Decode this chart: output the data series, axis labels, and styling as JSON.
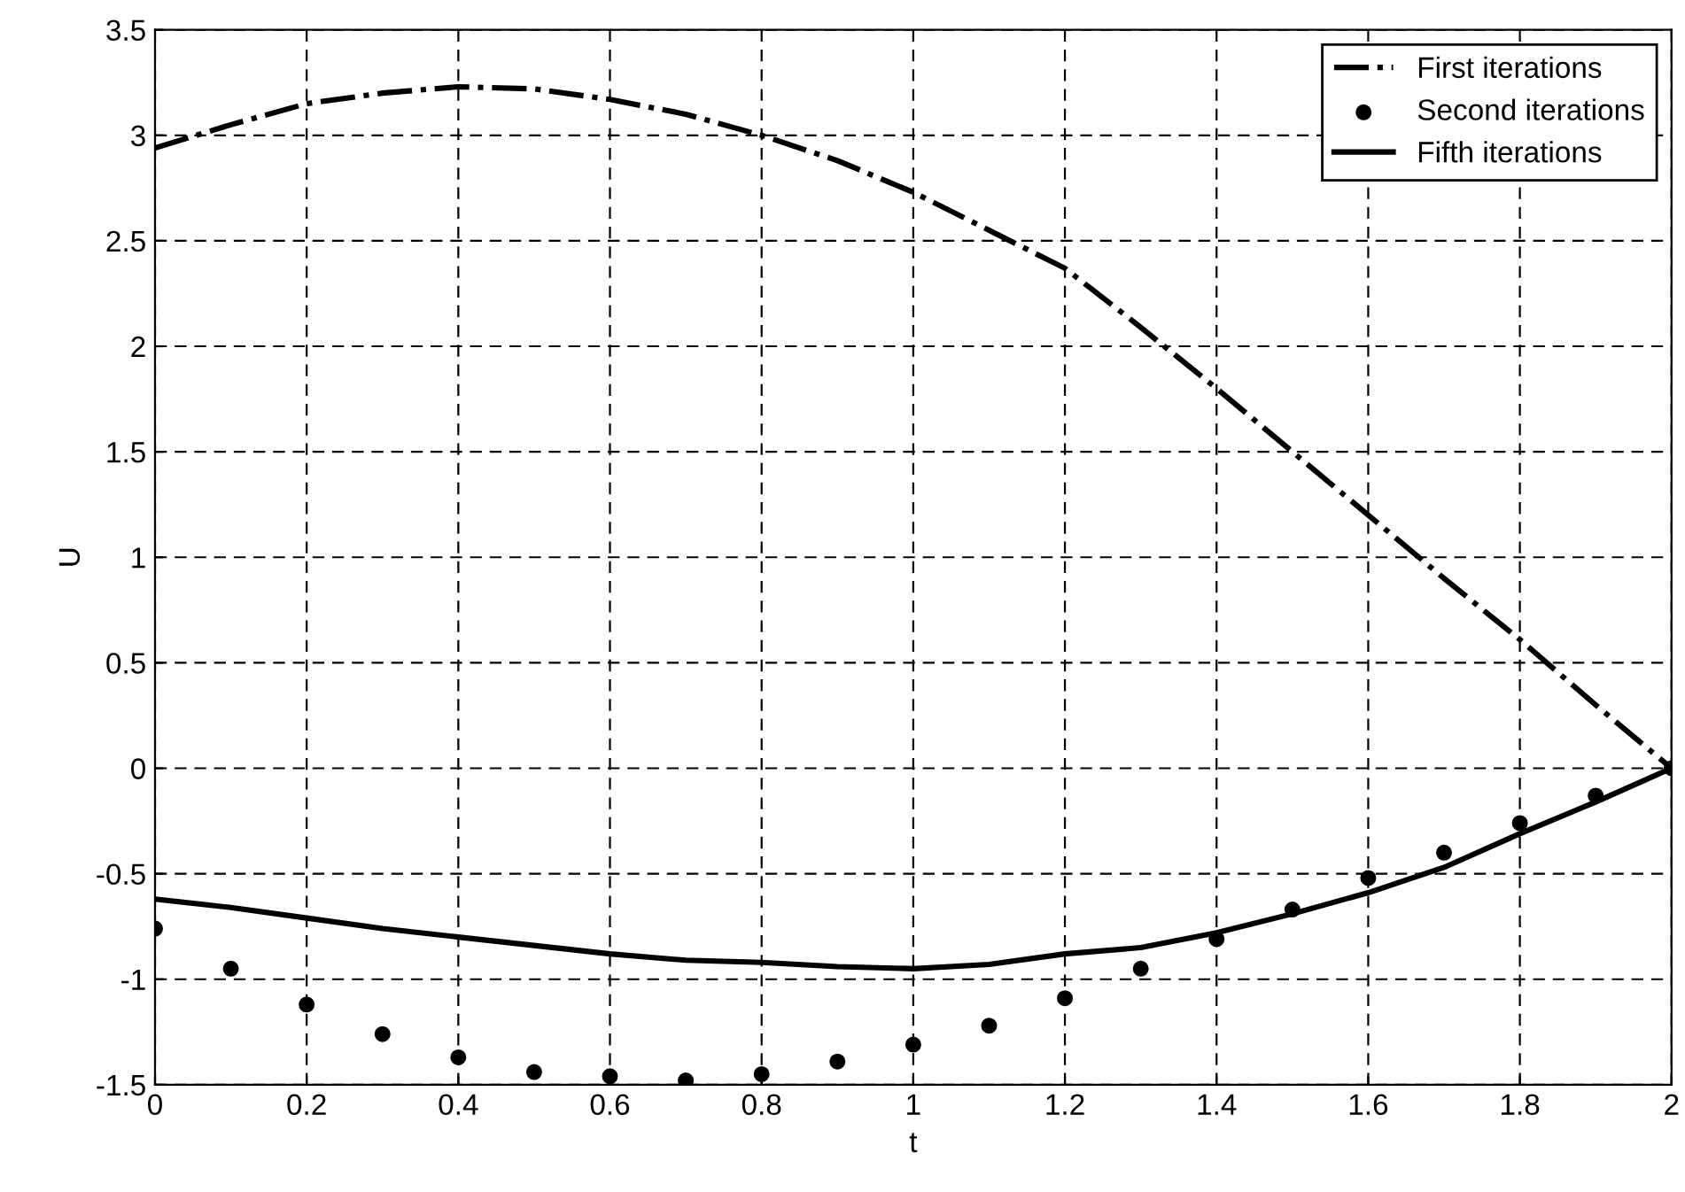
{
  "chart_data": {
    "type": "line",
    "xlabel": "t",
    "ylabel": "U",
    "x": [
      0,
      0.1,
      0.2,
      0.3,
      0.4,
      0.5,
      0.6,
      0.7,
      0.8,
      0.9,
      1.0,
      1.1,
      1.2,
      1.3,
      1.4,
      1.5,
      1.6,
      1.7,
      1.8,
      1.9,
      2.0
    ],
    "series": [
      {
        "name": "First iterations",
        "color": "#000000",
        "line_style": "dashdot",
        "values": [
          2.94,
          3.05,
          3.15,
          3.2,
          3.23,
          3.22,
          3.17,
          3.1,
          3.0,
          2.88,
          2.73,
          2.55,
          2.37,
          2.09,
          1.8,
          1.5,
          1.2,
          0.9,
          0.61,
          0.3,
          0
        ]
      },
      {
        "name": "Second iterations",
        "type": "scatter",
        "marker": "circle",
        "color": "#000000",
        "values": [
          -0.76,
          -0.95,
          -1.12,
          -1.26,
          -1.37,
          -1.44,
          -1.46,
          -1.48,
          -1.45,
          -1.39,
          -1.31,
          -1.22,
          -1.09,
          -0.95,
          -0.81,
          -0.67,
          -0.52,
          -0.4,
          -0.26,
          -0.13,
          0
        ]
      },
      {
        "name": "Fifth iterations",
        "color": "#000000",
        "line_style": "solid",
        "values": [
          -0.62,
          -0.66,
          -0.71,
          -0.76,
          -0.8,
          -0.84,
          -0.88,
          -0.91,
          -0.92,
          -0.94,
          -0.95,
          -0.93,
          -0.88,
          -0.85,
          -0.78,
          -0.69,
          -0.59,
          -0.47,
          -0.31,
          -0.16,
          0
        ]
      }
    ],
    "xlim": [
      0,
      2
    ],
    "xticks": [
      0,
      0.2,
      0.4,
      0.6,
      0.8,
      1,
      1.2,
      1.4,
      1.6,
      1.8,
      2
    ],
    "ylim": [
      -1.5,
      3.5
    ],
    "yticks": [
      -1.5,
      -1,
      -0.5,
      0,
      0.5,
      1,
      1.5,
      2,
      2.5,
      3,
      3.5
    ],
    "grid": true,
    "legend": "top right"
  }
}
